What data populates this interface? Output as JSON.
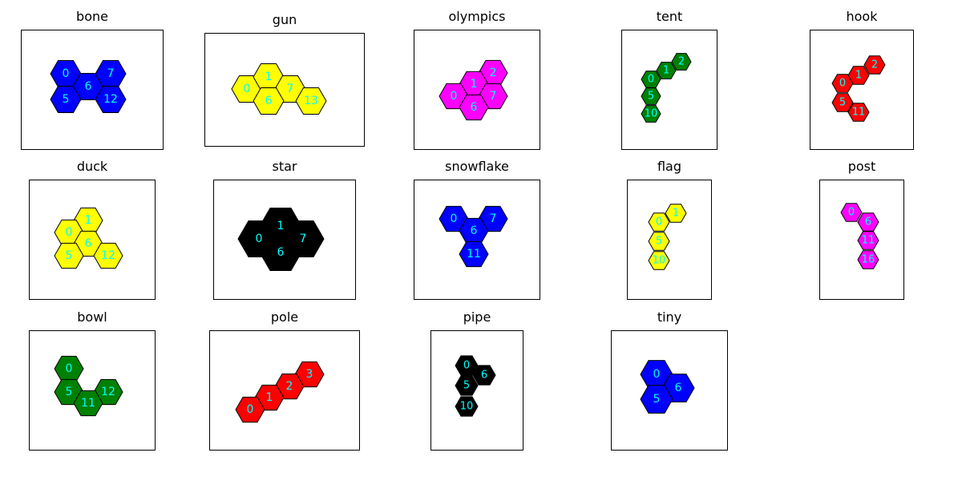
{
  "figure": {
    "panels": [
      {
        "title": "bone",
        "color": "#0000ff",
        "label_color": "#00ffff",
        "cells": [
          "0",
          "6",
          "7",
          "5",
          "12"
        ]
      },
      {
        "title": "gun",
        "color": "#ffff00",
        "label_color": "#00ffff",
        "cells": [
          "0",
          "1",
          "7",
          "6",
          "13"
        ]
      },
      {
        "title": "olympics",
        "color": "#ff00ff",
        "label_color": "#00ffff",
        "cells": [
          "2",
          "1",
          "0",
          "7",
          "6"
        ]
      },
      {
        "title": "tent",
        "color": "#008000",
        "label_color": "#00ffff",
        "cells": [
          "2",
          "1",
          "0",
          "5",
          "10"
        ]
      },
      {
        "title": "hook",
        "color": "#ff0000",
        "label_color": "#00ffff",
        "cells": [
          "2",
          "1",
          "0",
          "5",
          "11"
        ]
      },
      {
        "title": "duck",
        "color": "#ffff00",
        "label_color": "#00ffff",
        "cells": [
          "1",
          "0",
          "6",
          "5",
          "12"
        ]
      },
      {
        "title": "star",
        "color": "#000000",
        "label_color": "#00ffff",
        "cells": [
          "1",
          "0",
          "7",
          "6"
        ]
      },
      {
        "title": "snowflake",
        "color": "#0000ff",
        "label_color": "#00ffff",
        "cells": [
          "0",
          "7",
          "6",
          "11"
        ]
      },
      {
        "title": "flag",
        "color": "#ffff00",
        "label_color": "#00ffff",
        "cells": [
          "1",
          "0",
          "5",
          "10"
        ]
      },
      {
        "title": "post",
        "color": "#ff00ff",
        "label_color": "#00ffff",
        "cells": [
          "0",
          "6",
          "11",
          "16"
        ]
      },
      {
        "title": "bowl",
        "color": "#008000",
        "label_color": "#00ffff",
        "cells": [
          "0",
          "5",
          "12",
          "11"
        ]
      },
      {
        "title": "pole",
        "color": "#ff0000",
        "label_color": "#00ffff",
        "cells": [
          "3",
          "2",
          "1",
          "0"
        ]
      },
      {
        "title": "pipe",
        "color": "#000000",
        "label_color": "#00ffff",
        "cells": [
          "0",
          "6",
          "5",
          "10"
        ]
      },
      {
        "title": "tiny",
        "color": "#0000ff",
        "label_color": "#00ffff",
        "cells": [
          "0",
          "6",
          "5"
        ]
      }
    ]
  }
}
